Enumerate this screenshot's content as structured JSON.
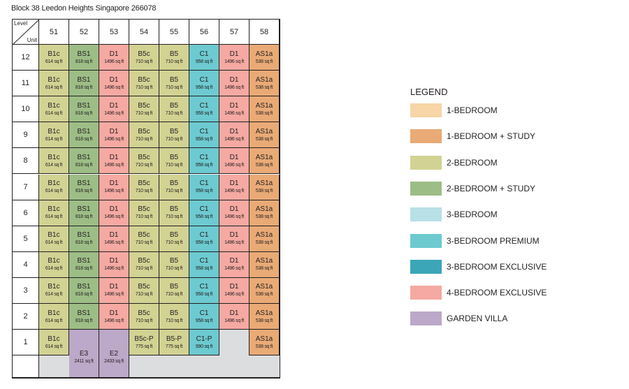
{
  "title": "Block 38 Leedon Heights Singapore 266078",
  "corner": {
    "level": "Level",
    "unit": "Unit"
  },
  "columns": [
    "51",
    "52",
    "53",
    "54",
    "55",
    "56",
    "57",
    "58"
  ],
  "levels": [
    "12",
    "11",
    "10",
    "9",
    "8",
    "7",
    "6",
    "5",
    "4",
    "3",
    "2",
    "1"
  ],
  "colors": {
    "1br": "#f7d5a6",
    "1br_study": "#e9aa76",
    "2br": "#d2d293",
    "2br_study": "#9dbd86",
    "3br": "#b9e0e6",
    "3br_premium": "#6ccad0",
    "3br_exclusive": "#3ba6b8",
    "4br_exclusive": "#f5a9a2",
    "garden_villa": "#bca8c8",
    "empty": "#dcdddf"
  },
  "typical_units": [
    {
      "type": "B1c",
      "area": "614 sq ft",
      "color_key": "2br"
    },
    {
      "type": "BS1",
      "area": "818 sq ft",
      "color_key": "2br_study"
    },
    {
      "type": "D1",
      "area": "1496 sq ft",
      "color_key": "4br_exclusive"
    },
    {
      "type": "B5c",
      "area": "710 sq ft",
      "color_key": "2br"
    },
    {
      "type": "B5",
      "area": "710 sq ft",
      "color_key": "2br"
    },
    {
      "type": "C1",
      "area": "958 sq ft",
      "color_key": "3br_premium"
    },
    {
      "type": "D1",
      "area": "1496 sq ft",
      "color_key": "4br_exclusive"
    },
    {
      "type": "AS1a",
      "area": "538 sq ft",
      "color_key": "1br_study"
    }
  ],
  "level1_units": [
    {
      "type": "B1c",
      "area": "614 sq ft",
      "color_key": "2br"
    },
    {
      "type": "E3",
      "area": "2411 sq ft",
      "color_key": "garden_villa"
    },
    {
      "type": "E2",
      "area": "2433 sq ft",
      "color_key": "garden_villa"
    },
    {
      "type": "B5c-P",
      "area": "775 sq ft",
      "color_key": "2br"
    },
    {
      "type": "B5-P",
      "area": "775 sq ft",
      "color_key": "2br"
    },
    {
      "type": "C1-P",
      "area": "990 sq ft",
      "color_key": "3br_premium"
    },
    {
      "type": "",
      "area": "",
      "color_key": "none"
    },
    {
      "type": "AS1a",
      "area": "538 sq ft",
      "color_key": "1br_study"
    }
  ],
  "legend": {
    "title": "LEGEND",
    "items": [
      {
        "label": "1-BEDROOM",
        "color_key": "1br"
      },
      {
        "label": "1-BEDROOM + STUDY",
        "color_key": "1br_study"
      },
      {
        "label": "2-BEDROOM",
        "color_key": "2br"
      },
      {
        "label": "2-BEDROOM + STUDY",
        "color_key": "2br_study"
      },
      {
        "label": "3-BEDROOM",
        "color_key": "3br"
      },
      {
        "label": "3-BEDROOM PREMIUM",
        "color_key": "3br_premium"
      },
      {
        "label": "3-BEDROOM EXCLUSIVE",
        "color_key": "3br_exclusive"
      },
      {
        "label": "4-BEDROOM EXCLUSIVE",
        "color_key": "4br_exclusive"
      },
      {
        "label": "GARDEN VILLA",
        "color_key": "garden_villa"
      }
    ]
  }
}
